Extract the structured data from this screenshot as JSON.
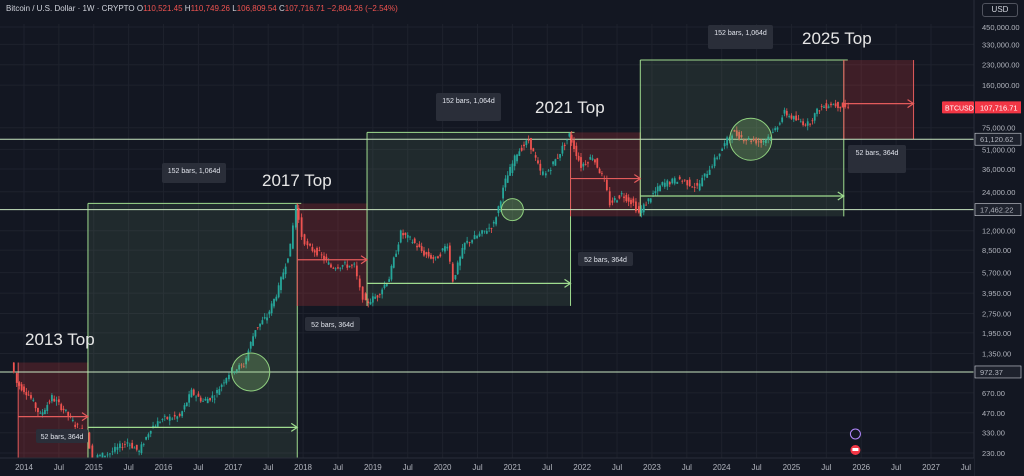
{
  "header": {
    "symbol": "Bitcoin / U.S. Dollar · 1W · CRYPTO",
    "open_label": "O",
    "open": "110,521.45",
    "high_label": "H",
    "high": "110,749.26",
    "low_label": "L",
    "low": "106,809.54",
    "close_label": "C",
    "close": "107,716.71",
    "change": "−2,804.26 (−2.54%)",
    "currency": "USD"
  },
  "colors": {
    "background": "#131722",
    "up": "#26a69a",
    "down": "#ef5350",
    "green_box_fill": "rgba(120,170,120,0.13)",
    "green_line": "#9fdc8f",
    "red_box_fill": "rgba(220,60,60,0.22)",
    "red_line": "#e35b5b",
    "horizontal_line": "#c8e6c0",
    "ticker_badge": "#f23645"
  },
  "chart_data": {
    "type": "candlestick",
    "scale": "log",
    "ylim": [
      200,
      700000
    ],
    "x_ticks": [
      "2014",
      "Jul",
      "2015",
      "Jul",
      "2016",
      "Jul",
      "2017",
      "Jul",
      "2018",
      "Jul",
      "2019",
      "Jul",
      "2020",
      "Jul",
      "2021",
      "Jul",
      "2022",
      "Jul",
      "2023",
      "Jul",
      "2024",
      "Jul",
      "2025",
      "Jul",
      "2026",
      "Jul",
      "2027",
      "Jul"
    ],
    "y_ticks": [
      "450,000.00",
      "330,000.00",
      "230,000.00",
      "160,000.00",
      "75,000.00",
      "51,000.00",
      "36,000.00",
      "24,000.00",
      "12,000.00",
      "8,500.00",
      "5,700.00",
      "3,950.00",
      "2,750.00",
      "1,950.00",
      "1,350.00",
      "670.00",
      "470.00",
      "330.00",
      "230.00"
    ],
    "y_tick_values": [
      450000,
      330000,
      230000,
      160000,
      75000,
      51000,
      36000,
      24000,
      12000,
      8500,
      5700,
      3950,
      2750,
      1950,
      1350,
      670,
      470,
      330,
      230
    ],
    "price_levels": [
      {
        "label": "61,120.62",
        "value": 61120.62
      },
      {
        "label": "17,462.22",
        "value": 17462.22
      },
      {
        "label": "972.37",
        "value": 972.37
      }
    ],
    "current_price": {
      "ticker": "BTCUSD",
      "value_label": "107,716.71",
      "value": 107716.71
    },
    "annotations": [
      {
        "text": "2013 Top"
      },
      {
        "text": "2017 Top"
      },
      {
        "text": "2021 Top"
      },
      {
        "text": "2025 Top"
      }
    ],
    "measure_labels": [
      {
        "text": "52 bars, 364d"
      },
      {
        "text": "152 bars, 1,064d"
      },
      {
        "text": "52 bars, 364d"
      },
      {
        "text": "152 bars, 1,064d"
      },
      {
        "text": "52 bars, 364d"
      },
      {
        "text": "152 bars, 1,064d"
      },
      {
        "text": "52 bars, 364d"
      }
    ],
    "cycles": [
      {
        "bear_start": "2013-12",
        "bear_end": "2014-12",
        "bull_end": "2017-12",
        "bear_low": 200,
        "bear_high": 1150,
        "bull_low": 200,
        "bull_high": 19500
      },
      {
        "bear_start": "2017-12",
        "bear_end": "2018-12",
        "bull_end": "2021-11",
        "bear_low": 3150,
        "bear_high": 19500,
        "bull_low": 3150,
        "bull_high": 69000
      },
      {
        "bear_start": "2021-11",
        "bear_end": "2022-11",
        "bull_end": "2025-10",
        "bear_low": 15500,
        "bear_high": 69000,
        "bull_low": 15500,
        "bull_high": 250000
      },
      {
        "bear_start": "2025-10",
        "bear_end": "2026-10",
        "bear_low": 61000,
        "bear_high": 250000
      }
    ],
    "price_path": [
      [
        "2013-11",
        1150
      ],
      [
        "2013-12",
        800
      ],
      [
        "2014-02",
        650
      ],
      [
        "2014-04",
        450
      ],
      [
        "2014-06",
        620
      ],
      [
        "2014-08",
        500
      ],
      [
        "2014-10",
        380
      ],
      [
        "2014-12",
        320
      ],
      [
        "2015-01",
        210
      ],
      [
        "2015-04",
        230
      ],
      [
        "2015-07",
        280
      ],
      [
        "2015-09",
        235
      ],
      [
        "2015-11",
        360
      ],
      [
        "2016-01",
        420
      ],
      [
        "2016-04",
        440
      ],
      [
        "2016-06",
        680
      ],
      [
        "2016-08",
        580
      ],
      [
        "2016-10",
        640
      ],
      [
        "2016-12",
        900
      ],
      [
        "2017-01",
        1000
      ],
      [
        "2017-03",
        1100
      ],
      [
        "2017-05",
        2100
      ],
      [
        "2017-07",
        2600
      ],
      [
        "2017-09",
        4300
      ],
      [
        "2017-11",
        9000
      ],
      [
        "2017-12",
        19000
      ],
      [
        "2018-01",
        11000
      ],
      [
        "2018-02",
        9000
      ],
      [
        "2018-04",
        8000
      ],
      [
        "2018-06",
        6300
      ],
      [
        "2018-08",
        6500
      ],
      [
        "2018-10",
        6400
      ],
      [
        "2018-11",
        4200
      ],
      [
        "2018-12",
        3300
      ],
      [
        "2019-02",
        3800
      ],
      [
        "2019-04",
        5200
      ],
      [
        "2019-06",
        11500
      ],
      [
        "2019-08",
        10000
      ],
      [
        "2019-10",
        8000
      ],
      [
        "2019-12",
        7200
      ],
      [
        "2020-02",
        9500
      ],
      [
        "2020-03",
        5000
      ],
      [
        "2020-05",
        9500
      ],
      [
        "2020-08",
        11500
      ],
      [
        "2020-10",
        13500
      ],
      [
        "2020-12",
        29000
      ],
      [
        "2021-02",
        48000
      ],
      [
        "2021-04",
        60000
      ],
      [
        "2021-06",
        34000
      ],
      [
        "2021-07",
        33000
      ],
      [
        "2021-09",
        45000
      ],
      [
        "2021-11",
        66000
      ],
      [
        "2022-01",
        38000
      ],
      [
        "2022-03",
        45000
      ],
      [
        "2022-05",
        29000
      ],
      [
        "2022-06",
        19500
      ],
      [
        "2022-08",
        23000
      ],
      [
        "2022-10",
        19500
      ],
      [
        "2022-11",
        16500
      ],
      [
        "2023-01",
        22000
      ],
      [
        "2023-03",
        27500
      ],
      [
        "2023-06",
        30000
      ],
      [
        "2023-09",
        26000
      ],
      [
        "2023-12",
        42000
      ],
      [
        "2024-03",
        69000
      ],
      [
        "2024-05",
        62000
      ],
      [
        "2024-08",
        58000
      ],
      [
        "2024-10",
        68000
      ],
      [
        "2024-12",
        98000
      ],
      [
        "2025-02",
        86000
      ],
      [
        "2025-04",
        80000
      ],
      [
        "2025-06",
        106000
      ],
      [
        "2025-08",
        115000
      ],
      [
        "2025-10",
        110000
      ],
      [
        "2025-11",
        107700
      ]
    ]
  }
}
